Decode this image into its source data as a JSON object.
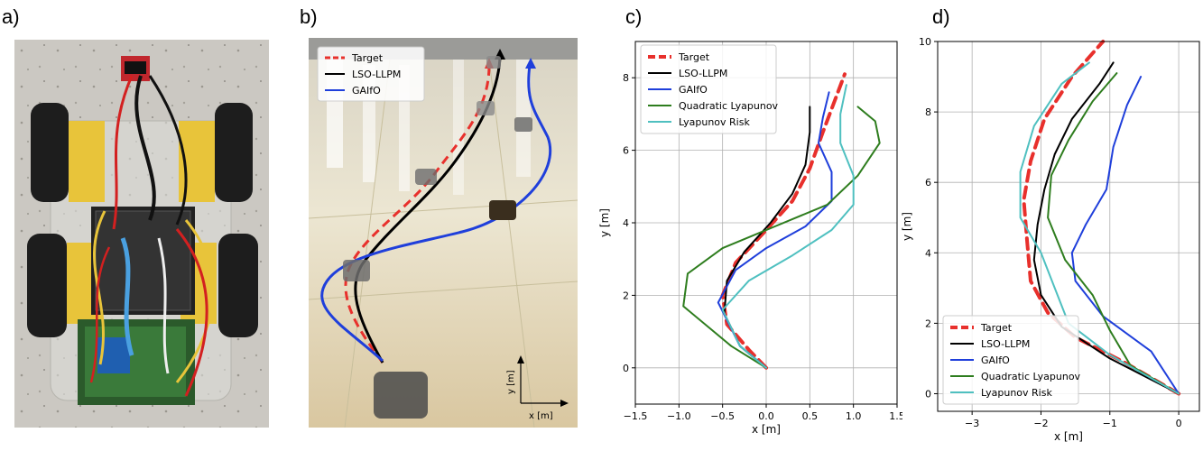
{
  "panels": {
    "a": "a)",
    "b": "b)",
    "c": "c)",
    "d": "d)"
  },
  "photo_b": {
    "legend": [
      "Target",
      "LSO-LLPM",
      "GAIfO"
    ],
    "axis_y": "y [m]",
    "axis_x": "x [m]"
  },
  "colors": {
    "target": "#e8302c",
    "lso_llpm": "#000000",
    "gaifo": "#1f3fdb",
    "quadratic": "#2e7d1e",
    "risk": "#4fc0c0"
  },
  "chart_data": [
    {
      "type": "line",
      "panel": "c)",
      "xlabel": "x [m]",
      "ylabel": "y [m]",
      "xlim": [
        -1.5,
        1.5
      ],
      "ylim": [
        -1,
        9
      ],
      "xticks": [
        -1.5,
        -1.0,
        -0.5,
        0.0,
        0.5,
        1.0,
        1.5
      ],
      "yticks": [
        0,
        2,
        4,
        6,
        8
      ],
      "grid": true,
      "legend_position": "top-left",
      "series": [
        {
          "name": "Target",
          "style": "dashed",
          "x": [
            0.0,
            -0.2,
            -0.45,
            -0.5,
            -0.35,
            0.0,
            0.3,
            0.5,
            0.65,
            0.9
          ],
          "y": [
            0.0,
            0.5,
            1.2,
            2.0,
            2.9,
            3.8,
            4.6,
            5.5,
            6.5,
            8.1
          ]
        },
        {
          "name": "LSO-LLPM",
          "style": "solid",
          "x": [
            0.0,
            -0.3,
            -0.48,
            -0.45,
            -0.25,
            0.05,
            0.3,
            0.45,
            0.5,
            0.5
          ],
          "y": [
            0.0,
            0.6,
            1.5,
            2.4,
            3.2,
            4.0,
            4.8,
            5.6,
            6.5,
            7.2
          ]
        },
        {
          "name": "GAIfO",
          "style": "solid",
          "x": [
            0.0,
            -0.3,
            -0.55,
            -0.35,
            0.0,
            0.45,
            0.75,
            0.75,
            0.6,
            0.65,
            0.72
          ],
          "y": [
            0.0,
            0.6,
            1.8,
            2.7,
            3.3,
            3.9,
            4.6,
            5.4,
            6.2,
            6.9,
            7.6
          ]
        },
        {
          "name": "Quadratic Lyapunov",
          "style": "solid",
          "x": [
            0.0,
            -0.4,
            -0.95,
            -0.9,
            -0.5,
            0.1,
            0.7,
            1.05,
            1.3,
            1.25,
            1.05
          ],
          "y": [
            0.0,
            0.6,
            1.7,
            2.6,
            3.3,
            3.9,
            4.5,
            5.3,
            6.2,
            6.8,
            7.2
          ]
        },
        {
          "name": "Lyapunov Risk",
          "style": "solid",
          "x": [
            0.0,
            -0.3,
            -0.5,
            -0.2,
            0.3,
            0.75,
            1.0,
            1.0,
            0.85,
            0.85,
            0.92
          ],
          "y": [
            0.0,
            0.6,
            1.6,
            2.4,
            3.1,
            3.8,
            4.5,
            5.3,
            6.2,
            7.0,
            7.8
          ]
        }
      ]
    },
    {
      "type": "line",
      "panel": "d)",
      "xlabel": "x [m]",
      "ylabel": "y [m]",
      "xlim": [
        -3.5,
        0.3
      ],
      "ylim": [
        -0.5,
        10
      ],
      "xticks": [
        -3,
        -2,
        -1,
        0
      ],
      "yticks": [
        0,
        2,
        4,
        6,
        8,
        10
      ],
      "grid": true,
      "legend_position": "bottom-left",
      "series": [
        {
          "name": "Target",
          "style": "dashed",
          "x": [
            0.0,
            -0.8,
            -1.5,
            -1.9,
            -2.15,
            -2.2,
            -2.25,
            -2.15,
            -1.95,
            -1.55,
            -1.1
          ],
          "y": [
            0.0,
            0.9,
            1.6,
            2.3,
            3.2,
            4.3,
            5.5,
            6.6,
            7.8,
            9.0,
            10.0
          ]
        },
        {
          "name": "LSO-LLPM",
          "style": "solid",
          "x": [
            0.0,
            -1.0,
            -1.7,
            -2.0,
            -2.1,
            -2.05,
            -1.95,
            -1.8,
            -1.55,
            -1.15,
            -0.95
          ],
          "y": [
            0.0,
            1.0,
            1.9,
            2.8,
            3.8,
            4.8,
            5.8,
            6.8,
            7.8,
            8.8,
            9.4
          ]
        },
        {
          "name": "GAIfO",
          "style": "solid",
          "x": [
            0.0,
            -0.4,
            -1.1,
            -1.5,
            -1.55,
            -1.35,
            -1.05,
            -0.95,
            -0.75,
            -0.55
          ],
          "y": [
            0.0,
            1.2,
            2.2,
            3.2,
            4.0,
            4.8,
            5.8,
            7.0,
            8.2,
            9.0
          ]
        },
        {
          "name": "Quadratic Lyapunov",
          "style": "solid",
          "x": [
            0.0,
            -0.7,
            -1.0,
            -1.25,
            -1.65,
            -1.9,
            -1.85,
            -1.6,
            -1.25,
            -0.9
          ],
          "y": [
            0.0,
            0.8,
            1.8,
            2.8,
            3.8,
            5.0,
            6.2,
            7.2,
            8.3,
            9.1
          ]
        },
        {
          "name": "Lyapunov Risk",
          "style": "solid",
          "x": [
            0.0,
            -1.0,
            -1.6,
            -1.8,
            -2.0,
            -2.3,
            -2.3,
            -2.1,
            -1.7,
            -1.3
          ],
          "y": [
            0.0,
            1.1,
            2.0,
            3.0,
            4.0,
            5.0,
            6.3,
            7.6,
            8.8,
            9.4
          ]
        }
      ]
    }
  ]
}
